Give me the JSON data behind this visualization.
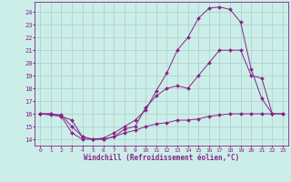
{
  "xlabel": "Windchill (Refroidissement éolien,°C)",
  "bg_color": "#cceee8",
  "grid_color": "#aacccc",
  "line_color": "#882288",
  "xlim": [
    -0.5,
    23.5
  ],
  "ylim": [
    13.5,
    24.8
  ],
  "yticks": [
    14,
    15,
    16,
    17,
    18,
    19,
    20,
    21,
    22,
    23,
    24
  ],
  "xticks": [
    0,
    1,
    2,
    3,
    4,
    5,
    6,
    7,
    8,
    9,
    10,
    11,
    12,
    13,
    14,
    15,
    16,
    17,
    18,
    19,
    20,
    21,
    22,
    23
  ],
  "curve_top_x": [
    0,
    1,
    2,
    3,
    4,
    5,
    6,
    7,
    8,
    9,
    10,
    11,
    12,
    13,
    14,
    15,
    16,
    17,
    18,
    19,
    20,
    21,
    22
  ],
  "curve_top_y": [
    16,
    15.9,
    15.8,
    15.5,
    14.2,
    14.0,
    14.1,
    14.5,
    15.0,
    15.5,
    16.3,
    17.8,
    19.2,
    21.0,
    22.0,
    23.5,
    24.3,
    24.4,
    24.2,
    23.2,
    19.5,
    17.2,
    16.0
  ],
  "curve_mid_x": [
    0,
    1,
    2,
    3,
    4,
    5,
    6,
    7,
    8,
    9,
    10,
    11,
    12,
    13,
    14,
    15,
    16,
    17,
    18,
    19,
    20,
    21,
    22,
    23
  ],
  "curve_mid_y": [
    16.0,
    16.0,
    15.9,
    15.0,
    14.2,
    14.0,
    14.0,
    14.2,
    14.8,
    15.0,
    16.5,
    17.4,
    18.0,
    18.2,
    18.0,
    19.0,
    20.0,
    21.0,
    21.0,
    21.0,
    19.0,
    18.8,
    16.0,
    16.0
  ],
  "curve_bot_x": [
    0,
    1,
    2,
    3,
    4,
    5,
    6,
    7,
    8,
    9,
    10,
    11,
    12,
    13,
    14,
    15,
    16,
    17,
    18,
    19,
    20,
    21,
    22,
    23
  ],
  "curve_bot_y": [
    16.0,
    16.0,
    15.8,
    14.5,
    14.0,
    14.0,
    14.0,
    14.2,
    14.5,
    14.7,
    15.0,
    15.2,
    15.3,
    15.5,
    15.5,
    15.6,
    15.8,
    15.9,
    16.0,
    16.0,
    16.0,
    16.0,
    16.0,
    16.0
  ]
}
